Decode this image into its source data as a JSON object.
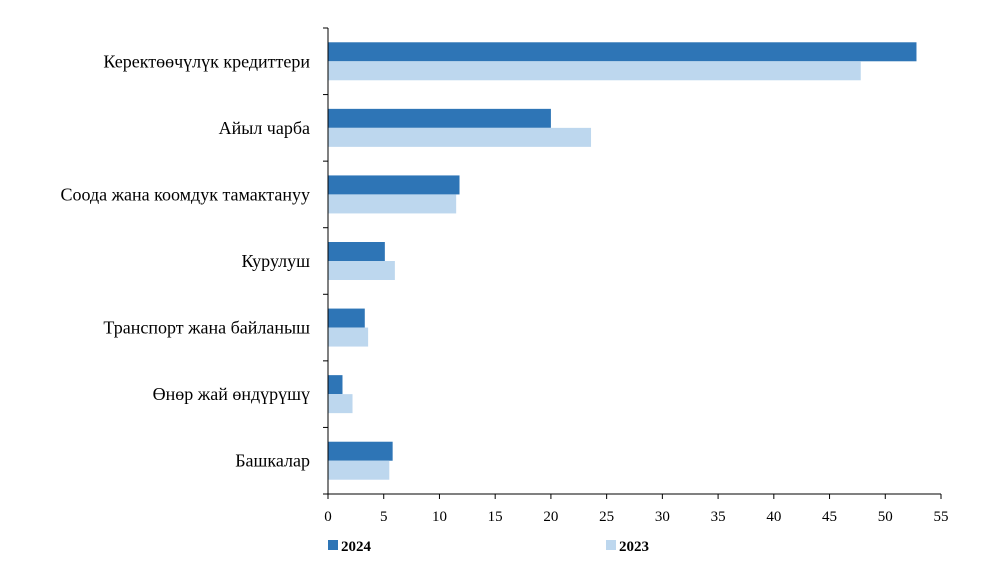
{
  "chart_data": {
    "type": "bar",
    "orientation": "horizontal",
    "categories": [
      "Керектөөчүлүк кредиттери",
      "Айыл чарба",
      "Соода жана коомдук тамактануу",
      "Курулуш",
      "Транспорт жана байланыш",
      "Өнөр жай өндүрүшү",
      "Башкалар"
    ],
    "series": [
      {
        "name": "2024",
        "color": "#2e75b6",
        "values": [
          52.8,
          20.0,
          11.8,
          5.1,
          3.3,
          1.3,
          5.8
        ]
      },
      {
        "name": "2023",
        "color": "#bdd7ee",
        "values": [
          47.8,
          23.6,
          11.5,
          6.0,
          3.6,
          2.2,
          5.5
        ]
      }
    ],
    "xlim": [
      0,
      55
    ],
    "xticks": [
      0,
      5,
      10,
      15,
      20,
      25,
      30,
      35,
      40,
      45,
      50,
      55
    ],
    "grid": false,
    "legend": "bottom",
    "title": "",
    "xlabel": "",
    "ylabel": ""
  }
}
